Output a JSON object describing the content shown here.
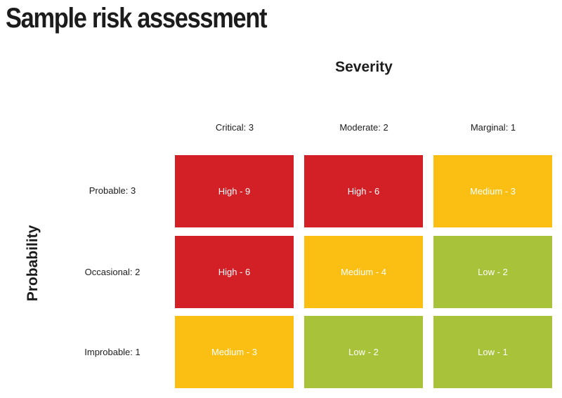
{
  "title": "Sample risk assessment",
  "severity_axis": {
    "label": "Severity",
    "columns": [
      "Critical: 3",
      "Moderate: 2",
      "Marginal: 1"
    ]
  },
  "probability_axis": {
    "label": "Probability",
    "rows": [
      "Probable: 3",
      "Occasional: 2",
      "Improbable: 1"
    ]
  },
  "colors": {
    "high": "#d32027",
    "medium": "#fbbf14",
    "low": "#a8c23a"
  },
  "matrix": [
    [
      {
        "text": "High - 9",
        "level": "high"
      },
      {
        "text": "High - 6",
        "level": "high"
      },
      {
        "text": "Medium - 3",
        "level": "medium"
      }
    ],
    [
      {
        "text": "High - 6",
        "level": "high"
      },
      {
        "text": "Medium - 4",
        "level": "medium"
      },
      {
        "text": "Low - 2",
        "level": "low"
      }
    ],
    [
      {
        "text": "Medium - 3",
        "level": "medium"
      },
      {
        "text": "Low - 2",
        "level": "low"
      },
      {
        "text": "Low - 1",
        "level": "low"
      }
    ]
  ]
}
